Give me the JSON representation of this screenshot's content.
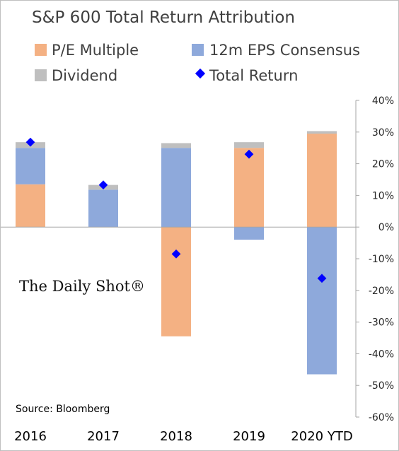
{
  "chart_data": {
    "type": "bar",
    "stacked": true,
    "title": "S&P 600 Total Return Attribution",
    "categories": [
      "2016",
      "2017",
      "2018",
      "2019",
      "2020 YTD"
    ],
    "series": [
      {
        "name": "P/E Multiple",
        "values": [
          13.5,
          0,
          -34.5,
          25.0,
          29.5
        ],
        "color": "#F4B183"
      },
      {
        "name": "12m EPS Consensus",
        "values": [
          11.5,
          11.8,
          25.0,
          -4.0,
          -46.5
        ],
        "color": "#8EA9DB"
      },
      {
        "name": "Dividend",
        "values": [
          1.8,
          1.5,
          1.5,
          1.8,
          0.8
        ],
        "color": "#BFBFBF"
      }
    ],
    "total_return": {
      "name": "Total Return",
      "values": [
        26.8,
        13.3,
        -8.5,
        23.0,
        -16.2
      ],
      "color": "#0000FF"
    },
    "ylim": [
      -60,
      40
    ],
    "yticks": [
      40,
      30,
      20,
      10,
      0,
      -10,
      -20,
      -30,
      -40,
      -50,
      -60
    ],
    "ytick_labels": [
      "40%",
      "30%",
      "20%",
      "10%",
      "0%",
      "-10%",
      "-20%",
      "-30%",
      "-40%",
      "-50%",
      "-60%"
    ],
    "legend_placement": "top",
    "grid": false
  },
  "source": "Source: Bloomberg",
  "watermark": "The Daily Shot®"
}
